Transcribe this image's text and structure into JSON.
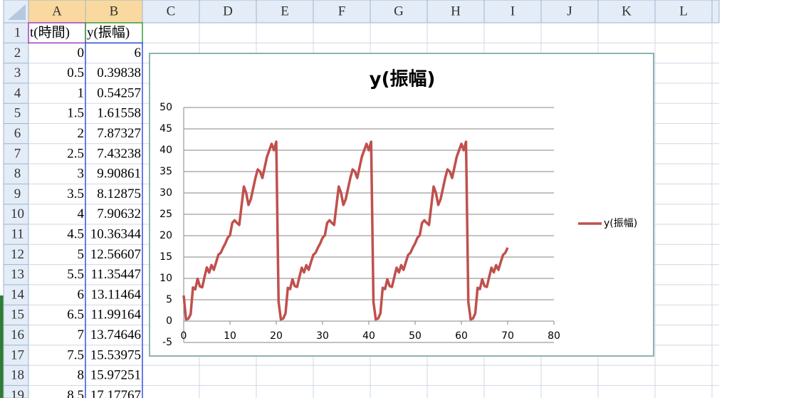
{
  "spreadsheet": {
    "columns": [
      "A",
      "B",
      "C",
      "D",
      "E",
      "F",
      "G",
      "H",
      "I",
      "J",
      "K",
      "L"
    ],
    "row_numbers": [
      1,
      2,
      3,
      4,
      5,
      6,
      7,
      8,
      9,
      10,
      11,
      12,
      13,
      14,
      15,
      16,
      17,
      18,
      19
    ],
    "cells": [
      [
        "t(時間)",
        "y(振幅)"
      ],
      [
        "0",
        "6"
      ],
      [
        "0.5",
        "0.39838"
      ],
      [
        "1",
        "0.54257"
      ],
      [
        "1.5",
        "1.61558"
      ],
      [
        "2",
        "7.87327"
      ],
      [
        "2.5",
        "7.43238"
      ],
      [
        "3",
        "9.90861"
      ],
      [
        "3.5",
        "8.12875"
      ],
      [
        "4",
        "7.90632"
      ],
      [
        "4.5",
        "10.36344"
      ],
      [
        "5",
        "12.56607"
      ],
      [
        "5.5",
        "11.35447"
      ],
      [
        "6",
        "13.11464"
      ],
      [
        "6.5",
        "11.99164"
      ],
      [
        "7",
        "13.74646"
      ],
      [
        "7.5",
        "15.53975"
      ],
      [
        "8",
        "15.97251"
      ],
      [
        "8.5",
        "17.17767"
      ]
    ]
  },
  "chart_data": {
    "type": "line",
    "title": "y(振幅)",
    "x": [
      0,
      0.5,
      1,
      1.5,
      2,
      2.5,
      3,
      3.5,
      4,
      4.5,
      5,
      5.5,
      6,
      6.5,
      7,
      7.5,
      8,
      8.5,
      9,
      9.5,
      10,
      10.5,
      11,
      11.5,
      12,
      12.5,
      13,
      13.5,
      14,
      14.5,
      15,
      15.5,
      16,
      16.5,
      17,
      17.5,
      18,
      18.5,
      19,
      19.5,
      20,
      20.5,
      21,
      21.5,
      22,
      22.5,
      23,
      23.5,
      24,
      24.5,
      25,
      25.5,
      26,
      26.5,
      27,
      27.5,
      28,
      28.5,
      29,
      29.5,
      30,
      30.5,
      31,
      31.5,
      32,
      32.5,
      33,
      33.5,
      34,
      34.5,
      35,
      35.5,
      36,
      36.5,
      37,
      37.5,
      38,
      38.5,
      39,
      39.5,
      40,
      40.5,
      41,
      41.5,
      42,
      42.5,
      43,
      43.5,
      44,
      44.5,
      45,
      45.5,
      46,
      46.5,
      47,
      47.5,
      48,
      48.5,
      49,
      49.5,
      50,
      50.5,
      51,
      51.5,
      52,
      52.5,
      53,
      53.5,
      54,
      54.5,
      55,
      55.5,
      56,
      56.5,
      57,
      57.5,
      58,
      58.5,
      59,
      59.5,
      60,
      60.5,
      61,
      61.5,
      62,
      62.5,
      63,
      63.5,
      64,
      64.5,
      65,
      65.5,
      66,
      66.5,
      67,
      67.5,
      68,
      68.5,
      69,
      69.5,
      70
    ],
    "series": [
      {
        "name": "y(振幅)",
        "color": "#c0504d",
        "values": [
          6,
          0.39838,
          0.54257,
          1.61558,
          7.87327,
          7.43238,
          9.90861,
          8.12875,
          7.90632,
          10.36344,
          12.56607,
          11.35447,
          13.11464,
          11.99164,
          13.74646,
          15.53975,
          15.97251,
          17.17767,
          18.2,
          19.5,
          20.1,
          23.0,
          23.6,
          23.0,
          22.5,
          27.0,
          31.5,
          30.0,
          27.2,
          28.5,
          31.0,
          33.5,
          35.5,
          35.0,
          33.5,
          36.0,
          38.5,
          40.0,
          41.5,
          40.0,
          42.0,
          4.5,
          0.4,
          0.6,
          1.8,
          7.8,
          7.5,
          9.8,
          8.2,
          8.0,
          10.3,
          12.5,
          11.4,
          13.1,
          12.0,
          13.8,
          15.5,
          16.0,
          17.2,
          18.2,
          19.5,
          20.1,
          23.0,
          23.6,
          23.0,
          22.5,
          27.0,
          31.5,
          30.0,
          27.2,
          28.5,
          31.0,
          33.5,
          35.5,
          35.0,
          33.5,
          36.0,
          38.5,
          40.0,
          41.5,
          40.0,
          42.0,
          4.5,
          0.4,
          0.6,
          1.8,
          7.8,
          7.5,
          9.8,
          8.2,
          8.0,
          10.3,
          12.5,
          11.4,
          13.1,
          12.0,
          13.8,
          15.5,
          16.0,
          17.2,
          18.2,
          19.5,
          20.1,
          23.0,
          23.6,
          23.0,
          22.5,
          27.0,
          31.5,
          30.0,
          27.2,
          28.5,
          31.0,
          33.5,
          35.5,
          35.0,
          33.5,
          36.0,
          38.5,
          40.0,
          41.5,
          40.0,
          42.0,
          4.5,
          0.4,
          0.6,
          1.8,
          7.8,
          7.5,
          9.8,
          8.2,
          8.0,
          10.3,
          12.5,
          11.4,
          13.1,
          12.0,
          13.8,
          15.5,
          16.0,
          17.2
        ]
      }
    ],
    "xlim": [
      0,
      80
    ],
    "ylim": [
      -5,
      50
    ],
    "xticks": [
      0,
      10,
      20,
      30,
      40,
      50,
      60,
      70,
      80
    ],
    "yticks": [
      -5,
      0,
      5,
      10,
      15,
      20,
      25,
      30,
      35,
      40,
      45,
      50
    ],
    "grid": true,
    "legend": "right"
  }
}
